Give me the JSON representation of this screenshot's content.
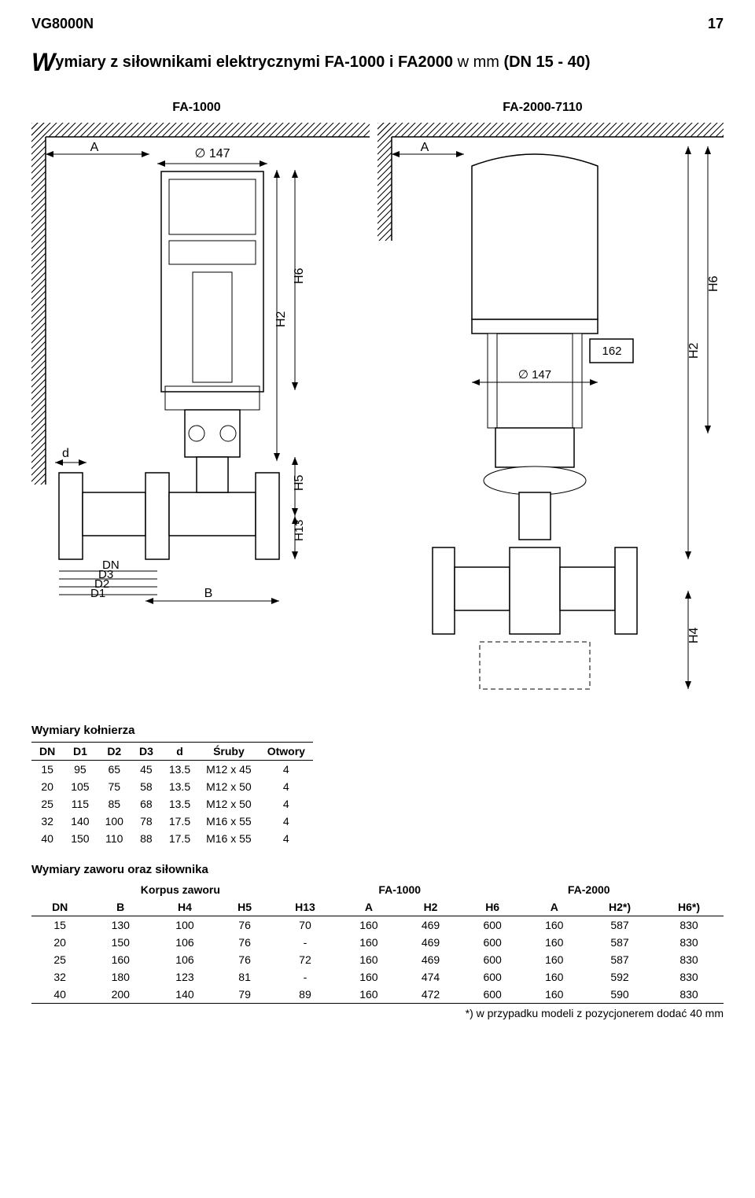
{
  "header": {
    "doc_title": "VG8000N",
    "page_number": "17"
  },
  "main_heading": {
    "big_w": "W",
    "rest": "ymiary z siłownikami elektrycznymi FA-1000 i FA2000",
    "tail_normal": " w mm ",
    "tail_bold": "(DN 15 - 40)"
  },
  "figure_labels": {
    "left": "FA-1000",
    "right": "FA-2000-7110"
  },
  "diagrams": {
    "left": {
      "annotations": [
        "A",
        "∅ 147",
        "H6",
        "H2",
        "H5",
        "H13",
        "d",
        "DN",
        "D3",
        "D2",
        "D1",
        "B"
      ]
    },
    "right": {
      "annotations": [
        "A",
        "162",
        "∅ 147",
        "H6",
        "H2",
        "H4"
      ]
    }
  },
  "flange_table": {
    "title": "Wymiary kołnierza",
    "columns": [
      "DN",
      "D1",
      "D2",
      "D3",
      "d",
      "Śruby",
      "Otwory"
    ],
    "rows": [
      [
        "15",
        "95",
        "65",
        "45",
        "13.5",
        "M12 x 45",
        "4"
      ],
      [
        "20",
        "105",
        "75",
        "58",
        "13.5",
        "M12 x 50",
        "4"
      ],
      [
        "25",
        "115",
        "85",
        "68",
        "13.5",
        "M12 x 50",
        "4"
      ],
      [
        "32",
        "140",
        "100",
        "78",
        "17.5",
        "M16 x 55",
        "4"
      ],
      [
        "40",
        "150",
        "110",
        "88",
        "17.5",
        "M16 x 55",
        "4"
      ]
    ]
  },
  "valve_table": {
    "title": "Wymiary zaworu oraz siłownika",
    "group_headers": [
      "",
      "Korpus zaworu",
      "",
      "FA-1000",
      "",
      "FA-2000"
    ],
    "group_spans": [
      1,
      3,
      1,
      2,
      1,
      2
    ],
    "columns": [
      "DN",
      "B",
      "H4",
      "H5",
      "H13",
      "A",
      "H2",
      "H6",
      "A",
      "H2*)",
      "H6*)"
    ],
    "rows": [
      [
        "15",
        "130",
        "100",
        "76",
        "70",
        "160",
        "469",
        "600",
        "160",
        "587",
        "830"
      ],
      [
        "20",
        "150",
        "106",
        "76",
        "-",
        "160",
        "469",
        "600",
        "160",
        "587",
        "830"
      ],
      [
        "25",
        "160",
        "106",
        "76",
        "72",
        "160",
        "469",
        "600",
        "160",
        "587",
        "830"
      ],
      [
        "32",
        "180",
        "123",
        "81",
        "-",
        "160",
        "474",
        "600",
        "160",
        "592",
        "830"
      ],
      [
        "40",
        "200",
        "140",
        "79",
        "89",
        "160",
        "472",
        "600",
        "160",
        "590",
        "830"
      ]
    ],
    "footnote": "*) w przypadku modeli z pozycjonerem dodać 40 mm"
  }
}
